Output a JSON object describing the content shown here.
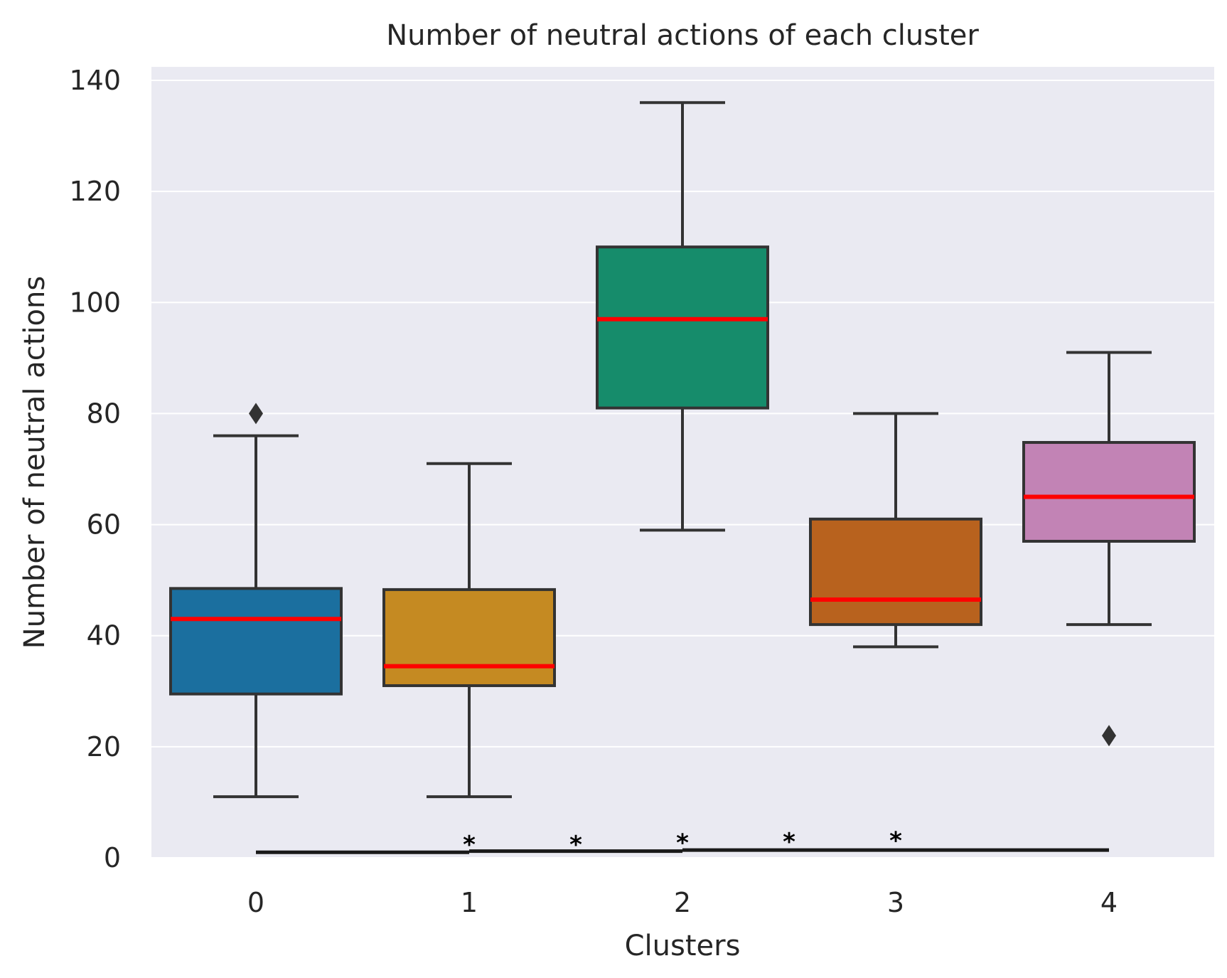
{
  "chart_data": {
    "type": "box",
    "title": "Number of neutral actions of each cluster",
    "xlabel": "Clusters",
    "ylabel": "Number of neutral actions",
    "ylim": [
      0,
      142
    ],
    "yticks": [
      0,
      20,
      40,
      60,
      80,
      100,
      120,
      140
    ],
    "grid": true,
    "categories": [
      "0",
      "1",
      "2",
      "3",
      "4"
    ],
    "boxes": [
      {
        "cluster": "0",
        "whisker_low": 11,
        "q1": 29.5,
        "median": 43,
        "q3": 48.5,
        "whisker_high": 76,
        "outliers": [
          80
        ],
        "color": "#1b6f9f"
      },
      {
        "cluster": "1",
        "whisker_low": 11,
        "q1": 31,
        "median": 34.5,
        "q3": 48.3,
        "whisker_high": 71,
        "outliers": [],
        "color": "#c58a22"
      },
      {
        "cluster": "2",
        "whisker_low": 59,
        "q1": 81,
        "median": 97,
        "q3": 110,
        "whisker_high": 136,
        "outliers": [],
        "color": "#168c6b"
      },
      {
        "cluster": "3",
        "whisker_low": 38,
        "q1": 42,
        "median": 46.5,
        "q3": 61,
        "whisker_high": 80,
        "outliers": [],
        "color": "#b8621e"
      },
      {
        "cluster": "4",
        "whisker_low": 42,
        "q1": 57,
        "median": 65,
        "q3": 74.8,
        "whisker_high": 91,
        "outliers": [
          22
        ],
        "color": "#c283b5"
      }
    ],
    "median_color": "#ff0000",
    "significance": {
      "lines": [
        {
          "from": "0",
          "to": "1",
          "y": 1
        },
        {
          "from": "1",
          "to": "2",
          "y": 1.2
        },
        {
          "from": "2",
          "to": "4",
          "y": 1.4
        }
      ],
      "stars": [
        {
          "label": "*",
          "x": 1.0,
          "y": 4.5
        },
        {
          "label": "*",
          "x": 1.5,
          "y": 4.5
        },
        {
          "label": "*",
          "x": 2.0,
          "y": 4.8
        },
        {
          "label": "*",
          "x": 2.5,
          "y": 5.0
        },
        {
          "label": "*",
          "x": 3.0,
          "y": 5.2
        }
      ]
    }
  }
}
